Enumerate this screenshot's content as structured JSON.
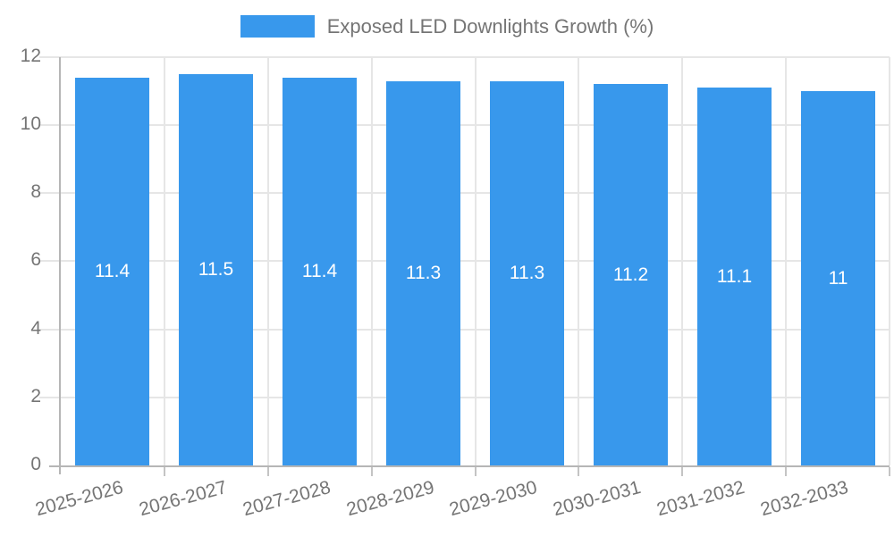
{
  "chart_data": {
    "type": "bar",
    "title": "Exposed LED Downlights Growth (%)",
    "legend_position": "top",
    "categories": [
      "2025-2026",
      "2026-2027",
      "2027-2028",
      "2028-2029",
      "2029-2030",
      "2030-2031",
      "2031-2032",
      "2032-2033"
    ],
    "values": [
      11.4,
      11.5,
      11.4,
      11.3,
      11.3,
      11.2,
      11.1,
      11
    ],
    "bar_labels": [
      "11.4",
      "11.5",
      "11.4",
      "11.3",
      "11.3",
      "11.2",
      "11.1",
      "11"
    ],
    "xlabel": "",
    "ylabel": "",
    "ylim": [
      0,
      12
    ],
    "yticks": [
      0,
      2,
      4,
      6,
      8,
      10,
      12
    ],
    "grid": true,
    "colors": {
      "bar": "#3898EC",
      "axis_line": "#b6b6b6",
      "gridline": "#e6e6e6",
      "tick": "#c4c4c4",
      "axis_text": "#757575",
      "value_text": "#ffffff",
      "background": "#ffffff"
    }
  }
}
